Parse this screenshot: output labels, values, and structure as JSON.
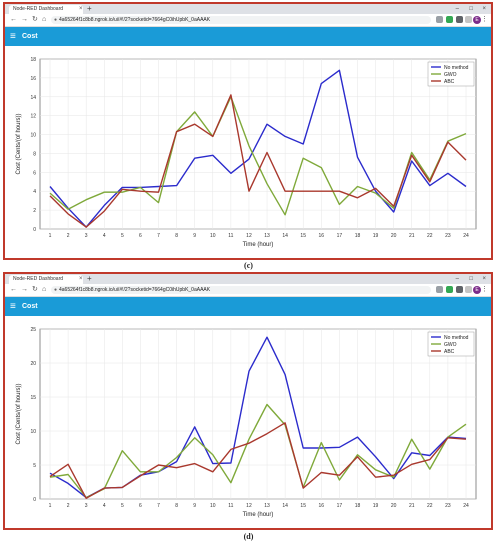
{
  "browser": {
    "tab_title": "Node-RED Dashboard",
    "tab_close": "×",
    "new_tab": "+",
    "url": "4a65264f1c8b8.ngrok.io/ui/#!/2?socketid=7664gC0ihUpbK_0aAAAK",
    "avatar_letter": "E",
    "window_controls": [
      "–",
      "□",
      "×"
    ]
  },
  "app": {
    "title": "Cost",
    "bar_color": "#1a9bd7"
  },
  "captions": {
    "c": "(c)",
    "d": "(d)"
  },
  "colors": {
    "No method": "#2b2bcc",
    "GWO": "#7fa93a",
    "ABC": "#a9382d"
  },
  "chart_data": [
    {
      "type": "line",
      "panel": "c",
      "xlabel": "Time (hour)",
      "ylabel": "Cost (Cents/(of hours))",
      "x": [
        1,
        2,
        3,
        4,
        5,
        6,
        7,
        8,
        9,
        10,
        11,
        12,
        13,
        14,
        15,
        16,
        17,
        18,
        19,
        20,
        21,
        22,
        23,
        24
      ],
      "ylim": [
        0,
        18
      ],
      "yticks": [
        0,
        2,
        4,
        6,
        8,
        10,
        12,
        14,
        16,
        18
      ],
      "grid": true,
      "legend_position": "top-right",
      "series": [
        {
          "name": "No method",
          "values": [
            4.5,
            2.2,
            0.2,
            2.5,
            4.4,
            4.4,
            4.5,
            4.6,
            7.5,
            7.8,
            5.9,
            7.4,
            11.1,
            9.8,
            9.0,
            15.4,
            16.8,
            7.6,
            4.0,
            1.8,
            7.2,
            4.6,
            5.9,
            4.5
          ]
        },
        {
          "name": "GWO",
          "values": [
            3.8,
            2.1,
            3.1,
            3.9,
            3.9,
            4.4,
            2.8,
            10.3,
            12.4,
            9.8,
            14.0,
            8.8,
            4.8,
            1.5,
            7.5,
            6.5,
            2.6,
            4.5,
            3.8,
            2.2,
            8.1,
            5.2,
            9.3,
            10.1
          ]
        },
        {
          "name": "ABC",
          "values": [
            3.5,
            1.6,
            0.2,
            1.9,
            4.2,
            4.0,
            3.9,
            10.3,
            11.1,
            9.8,
            14.2,
            4.0,
            8.1,
            4.0,
            4.0,
            4.0,
            4.0,
            3.3,
            4.3,
            2.4,
            7.8,
            5.0,
            9.2,
            7.3
          ]
        }
      ]
    },
    {
      "type": "line",
      "panel": "d",
      "xlabel": "Time (hour)",
      "ylabel": "Cost (Cents/(of hours))",
      "x": [
        1,
        2,
        3,
        4,
        5,
        6,
        7,
        8,
        9,
        10,
        11,
        12,
        13,
        14,
        15,
        16,
        17,
        18,
        19,
        20,
        21,
        22,
        23,
        24
      ],
      "ylim": [
        0,
        25
      ],
      "yticks": [
        0,
        5,
        10,
        15,
        20,
        25
      ],
      "grid": true,
      "legend_position": "top-right",
      "series": [
        {
          "name": "No method",
          "values": [
            3.8,
            2.3,
            0.2,
            1.6,
            1.7,
            3.5,
            4.0,
            5.5,
            10.6,
            5.2,
            5.3,
            18.8,
            23.8,
            18.3,
            7.5,
            7.5,
            7.6,
            9.1,
            6.2,
            3.0,
            6.8,
            6.4,
            9.1,
            8.9
          ]
        },
        {
          "name": "GWO",
          "values": [
            3.2,
            3.6,
            0.2,
            1.5,
            7.1,
            4.0,
            4.0,
            6.1,
            9.0,
            6.5,
            2.4,
            8.8,
            13.9,
            10.9,
            1.7,
            8.3,
            2.8,
            6.5,
            4.3,
            3.2,
            8.8,
            4.4,
            9.1,
            11.0
          ]
        },
        {
          "name": "ABC",
          "values": [
            3.3,
            5.1,
            0.1,
            1.6,
            1.7,
            3.4,
            5.0,
            4.6,
            5.2,
            4.0,
            7.3,
            8.2,
            9.6,
            11.2,
            1.6,
            3.9,
            3.5,
            6.2,
            3.2,
            3.5,
            5.1,
            5.8,
            9.0,
            8.8
          ]
        }
      ]
    }
  ]
}
